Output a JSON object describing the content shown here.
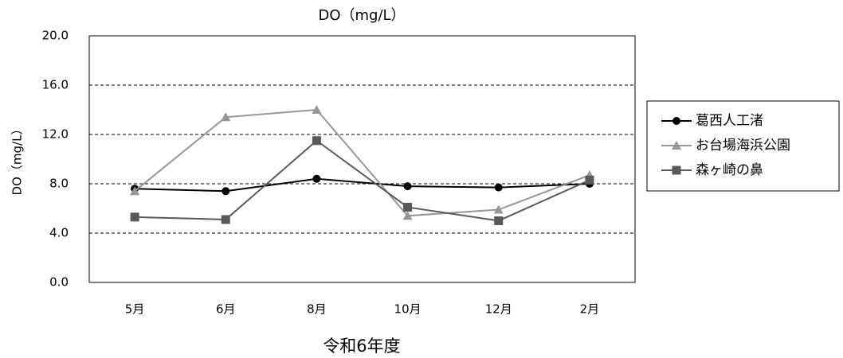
{
  "chart_data": {
    "type": "line",
    "title": "DO（mg/L）",
    "y_label": "DO（mg/L）",
    "x_label": "令和6年度",
    "categories": [
      "5月",
      "6月",
      "8月",
      "10月",
      "12月",
      "2月"
    ],
    "series": [
      {
        "name": "葛西人工渚",
        "color": "#000000",
        "marker": "circle",
        "values": [
          7.6,
          7.4,
          8.4,
          7.8,
          7.7,
          8.0
        ]
      },
      {
        "name": "お台場海浜公園",
        "color": "#969696",
        "marker": "triangle",
        "values": [
          7.4,
          13.4,
          14.0,
          5.4,
          5.9,
          8.7
        ]
      },
      {
        "name": "森ヶ崎の鼻",
        "color": "#595959",
        "marker": "square",
        "values": [
          5.3,
          5.1,
          11.5,
          6.1,
          5.0,
          8.3
        ]
      }
    ],
    "ylim": [
      0,
      20
    ],
    "yticks": [
      {
        "value": 0,
        "label": "0.0"
      },
      {
        "value": 4,
        "label": "4.0"
      },
      {
        "value": 8,
        "label": "8.0"
      },
      {
        "value": 12,
        "label": "12.0"
      },
      {
        "value": 16,
        "label": "16.0"
      },
      {
        "value": 20,
        "label": "20.0"
      }
    ],
    "grid": true,
    "legend": "right"
  }
}
